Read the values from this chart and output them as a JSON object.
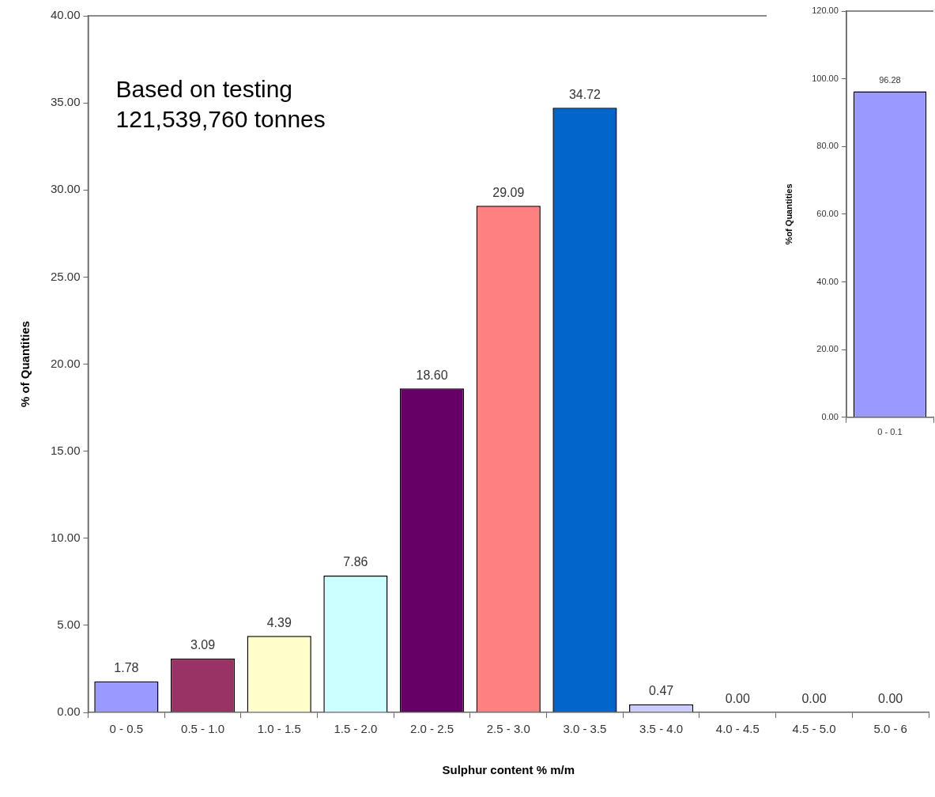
{
  "chart_data": [
    {
      "type": "bar",
      "xlabel": "Sulphur content % m/m",
      "ylabel": "% of Quantities",
      "categories": [
        "0 - 0.5",
        "0.5 - 1.0",
        "1.0 - 1.5",
        "1.5 - 2.0",
        "2.0 - 2.5",
        "2.5 - 3.0",
        "3.0 - 3.5",
        "3.5 - 4.0",
        "4.0 - 4.5",
        "4.5 - 5.0",
        "5.0 - 6"
      ],
      "values": [
        1.78,
        3.09,
        4.39,
        7.86,
        18.6,
        29.09,
        34.72,
        0.47,
        0.0,
        0.0,
        0.0
      ],
      "colors": [
        "#9999ff",
        "#993366",
        "#ffffcc",
        "#ccffff",
        "#660066",
        "#ff8080",
        "#0066cc",
        "#ccccff",
        "#000080",
        "#ff00ff",
        "#ffff00"
      ],
      "ylim": [
        0,
        40
      ],
      "yticks": [
        {
          "value": 0,
          "label": "0.00"
        },
        {
          "value": 5,
          "label": "5.00"
        },
        {
          "value": 10,
          "label": "10.00"
        },
        {
          "value": 15,
          "label": "15.00"
        },
        {
          "value": 20,
          "label": "20.00"
        },
        {
          "value": 25,
          "label": "25.00"
        },
        {
          "value": 30,
          "label": "30.00"
        },
        {
          "value": 35,
          "label": "35.00"
        },
        {
          "value": 40,
          "label": "40.00"
        }
      ],
      "value_labels": [
        "1.78",
        "3.09",
        "4.39",
        "7.86",
        "18.60",
        "29.09",
        "34.72",
        "0.47",
        "0.00",
        "0.00",
        "0.00"
      ],
      "annotations": [
        "Based on testing\n121,539,760 tonnes"
      ],
      "grid": false,
      "legend": false
    },
    {
      "type": "bar",
      "ylabel": "%of Quantities",
      "categories": [
        "0 - 0.1"
      ],
      "values": [
        96.28
      ],
      "colors": [
        "#9999ff"
      ],
      "ylim": [
        0,
        120
      ],
      "yticks": [
        {
          "value": 0,
          "label": "0.00"
        },
        {
          "value": 20,
          "label": "20.00"
        },
        {
          "value": 40,
          "label": "40.00"
        },
        {
          "value": 60,
          "label": "60.00"
        },
        {
          "value": 80,
          "label": "80.00"
        },
        {
          "value": 100,
          "label": "100.00"
        },
        {
          "value": 120,
          "label": "120.00"
        }
      ],
      "value_labels": [
        "96.28"
      ],
      "grid": false,
      "legend": false
    }
  ]
}
